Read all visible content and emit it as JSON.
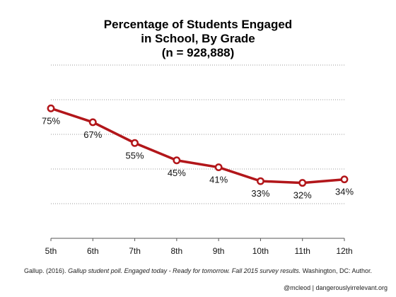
{
  "title_lines": [
    "Percentage of Students Engaged",
    "in School, By Grade",
    "(n = 928,888)"
  ],
  "citation": {
    "plain_prefix": "Gallup. (2016). ",
    "italic": "Gallup student poll. Engaged today - Ready for tomorrow. Fall 2015 survey results.",
    "plain_suffix": " Washington, DC: Author."
  },
  "credit": "@mcleod | dangerouslyirrelevant.org",
  "colors": {
    "line": "#b2161a",
    "grid": "#9a9a9a",
    "axis": "#555555"
  },
  "chart_data": {
    "type": "line",
    "categories": [
      "5th",
      "6th",
      "7th",
      "8th",
      "9th",
      "10th",
      "11th",
      "12th"
    ],
    "values": [
      75,
      67,
      55,
      45,
      41,
      33,
      32,
      34
    ],
    "data_labels": [
      "75%",
      "67%",
      "55%",
      "45%",
      "41%",
      "33%",
      "32%",
      "34%"
    ],
    "ylim": [
      0,
      100
    ],
    "grid": true,
    "gridlines": [
      20,
      40,
      60,
      80,
      100
    ]
  }
}
